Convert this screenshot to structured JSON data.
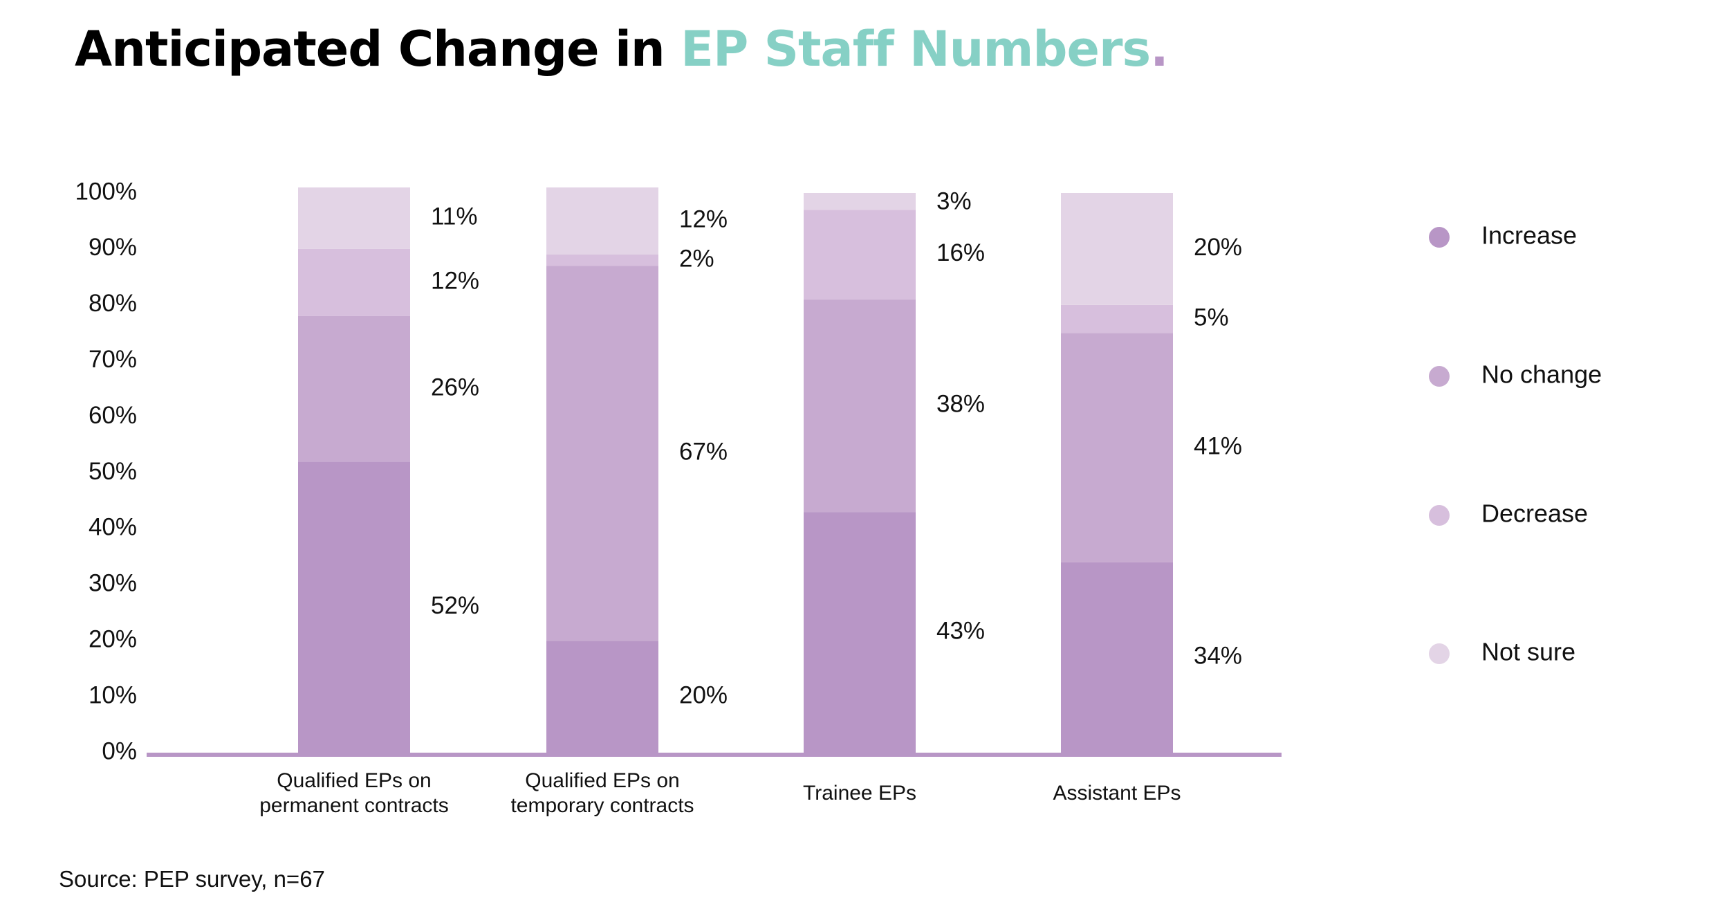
{
  "title": {
    "prefix": "Anticipated Change in ",
    "highlight": "EP Staff Numbers",
    "dot": "."
  },
  "colors": {
    "title_accent": "#86d0c5",
    "title_dot": "#b896c6",
    "axis_line": "#b896c6",
    "Increase": "#b896c6",
    "No change": "#c7aad0",
    "Decrease": "#d7bfdd",
    "Not sure": "#e3d4e6"
  },
  "source": "Source: PEP survey, n=67",
  "chart_data": {
    "type": "bar",
    "stacked": true,
    "ylim": [
      0,
      100
    ],
    "yticks": [
      "0%",
      "10%",
      "20%",
      "30%",
      "40%",
      "50%",
      "60%",
      "70%",
      "80%",
      "90%",
      "100%"
    ],
    "categories": [
      [
        "Qualified EPs on",
        "permanent contracts"
      ],
      [
        "Qualified EPs on",
        "temporary contracts"
      ],
      [
        "Trainee EPs"
      ],
      [
        "Assistant EPs"
      ]
    ],
    "series": [
      {
        "name": "Increase",
        "values": [
          52,
          20,
          43,
          34
        ],
        "labels": [
          "52%",
          "20%",
          "43%",
          "34%"
        ]
      },
      {
        "name": "No change",
        "values": [
          26,
          67,
          38,
          41
        ],
        "labels": [
          "26%",
          "67%",
          "38%",
          "41%"
        ]
      },
      {
        "name": "Decrease",
        "values": [
          12,
          2,
          16,
          5
        ],
        "labels": [
          "12%",
          "2%",
          "16%",
          "5%"
        ]
      },
      {
        "name": "Not sure",
        "values": [
          11,
          12,
          3,
          20
        ],
        "labels": [
          "11%",
          "12%",
          "3%",
          "20%"
        ]
      }
    ],
    "legend": {
      "position": "right",
      "entries": [
        "Increase",
        "No change",
        "Decrease",
        "Not sure"
      ]
    },
    "grid": false
  }
}
